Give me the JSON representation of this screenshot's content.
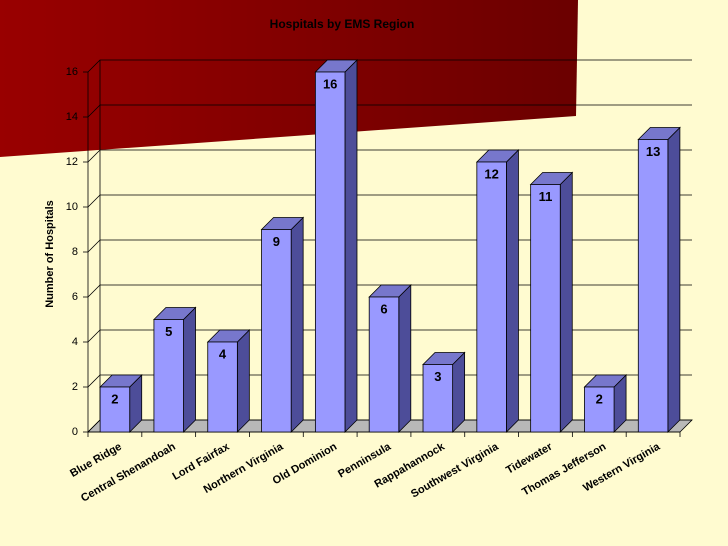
{
  "chart_data": {
    "type": "bar",
    "title": "Hospitals by EMS Region",
    "y_label": "Number of Hospitals",
    "categories": [
      "Blue Ridge",
      "Central Shenandoah",
      "Lord Fairfax",
      "Northern Virginia",
      "Old Dominion",
      "Penninsula",
      "Rappahannock",
      "Southwest Virginia",
      "Tidewater",
      "Thomas Jefferson",
      "Western Virginia"
    ],
    "values": [
      2,
      5,
      4,
      9,
      16,
      6,
      3,
      12,
      11,
      2,
      13
    ],
    "color": "#9999ff",
    "ylim": [
      0,
      16
    ],
    "yticks": [
      0,
      2,
      4,
      6,
      8,
      10,
      12,
      14,
      16
    ],
    "grid": true
  }
}
